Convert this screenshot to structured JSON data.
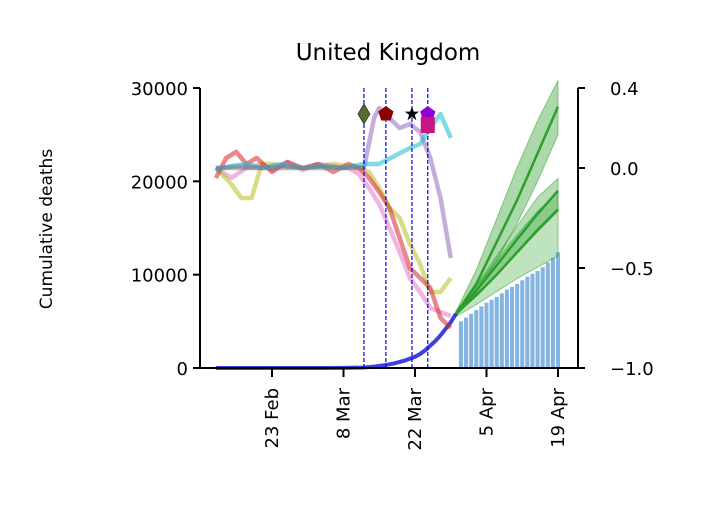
{
  "chart_data": {
    "type": "line",
    "title": "United Kingdom",
    "ylabel": "Cumulative deaths",
    "ylim": [
      0,
      30000
    ],
    "y_ticks": [
      0,
      10000,
      20000,
      30000
    ],
    "y2lim": [
      -1.0,
      0.4
    ],
    "y2_ticks": [
      "−1.0",
      "−0.5",
      "0.0",
      "0.4"
    ],
    "y2_tick_values": [
      -1.0,
      -0.5,
      0.0,
      0.4
    ],
    "x_ticks": [
      {
        "label": "23 Feb",
        "day": 0
      },
      {
        "label": "8 Mar",
        "day": 14
      },
      {
        "label": "22 Mar",
        "day": 28
      },
      {
        "label": "5 Apr",
        "day": 42
      },
      {
        "label": "19 Apr",
        "day": 56
      }
    ],
    "xlim_days": [
      -11,
      60
    ],
    "event_lines_days": [
      18,
      22.3,
      27.4,
      30.5
    ],
    "event_markers": [
      {
        "day": 18,
        "symbol": "diamond",
        "color": "#556b2f"
      },
      {
        "day": 22.3,
        "symbol": "pentagon",
        "color": "#8b0000"
      },
      {
        "day": 27.4,
        "symbol": "star",
        "color": "#000000"
      },
      {
        "day": 30.5,
        "symbol": "pentagon",
        "color": "#9400d3"
      },
      {
        "day": 30.5,
        "symbol": "square",
        "color": "#c71585"
      }
    ],
    "observed_deaths": {
      "color": "#1f1fd6",
      "days": [
        -11,
        0,
        10,
        14,
        18,
        20,
        22,
        24,
        26,
        28,
        29,
        30,
        31,
        32,
        33,
        34,
        35,
        36
      ],
      "values": [
        0,
        0,
        0,
        10,
        50,
        150,
        300,
        500,
        800,
        1200,
        1500,
        1900,
        2400,
        2900,
        3500,
        4200,
        4900,
        5800
      ]
    },
    "deaths_bars": {
      "color": "#5b9bd5",
      "days": [
        37,
        38,
        39,
        40,
        41,
        42,
        43,
        44,
        45,
        46,
        47,
        48,
        49,
        50,
        51,
        52,
        53,
        54,
        55,
        56
      ],
      "values": [
        5000,
        5400,
        5800,
        6200,
        6600,
        7000,
        7300,
        7600,
        8000,
        8400,
        8700,
        9000,
        9400,
        9800,
        10100,
        10400,
        10800,
        11300,
        11800,
        12400
      ]
    },
    "projections": [
      {
        "color": "#2ca02c",
        "opacity": 0.4,
        "days": [
          36,
          40,
          44,
          48,
          52,
          56
        ],
        "median": [
          5800,
          9000,
          13500,
          18000,
          23000,
          28000
        ],
        "low": [
          5600,
          8000,
          11500,
          15500,
          20000,
          25000
        ],
        "high": [
          6000,
          10500,
          16000,
          21500,
          26500,
          30800
        ]
      },
      {
        "color": "#2ca02c",
        "opacity": 0.35,
        "days": [
          36,
          40,
          44,
          48,
          52,
          56
        ],
        "median": [
          5800,
          8300,
          11000,
          13800,
          16500,
          19000
        ],
        "low": [
          5600,
          7800,
          10000,
          12300,
          14600,
          16800
        ],
        "high": [
          6000,
          8800,
          12000,
          15200,
          18300,
          20300
        ]
      },
      {
        "color": "#2ca02c",
        "opacity": 0.3,
        "days": [
          36,
          40,
          44,
          48,
          52,
          56
        ],
        "median": [
          5800,
          7800,
          10000,
          12400,
          14800,
          17000
        ],
        "low": [
          5500,
          6800,
          8200,
          9600,
          10800,
          12000
        ],
        "high": [
          6100,
          8700,
          11500,
          14300,
          16800,
          18800
        ]
      }
    ],
    "mobility_series": [
      {
        "color": "#e377c2",
        "days": [
          -11,
          -8,
          -5,
          -2,
          0,
          3,
          6,
          9,
          12,
          15,
          17,
          19,
          21,
          23,
          25,
          27,
          29,
          31,
          33,
          35
        ],
        "values": [
          0.0,
          -0.05,
          0.0,
          0.02,
          -0.01,
          0.03,
          -0.01,
          0.02,
          0.01,
          0.0,
          -0.03,
          -0.1,
          -0.18,
          -0.3,
          -0.42,
          -0.55,
          -0.62,
          -0.7,
          -0.72,
          -0.74
        ]
      },
      {
        "color": "#bcbd22",
        "days": [
          -11,
          -8,
          -6,
          -4,
          -2,
          0,
          3,
          6,
          9,
          12,
          15,
          17,
          19,
          21,
          23,
          25,
          27,
          29,
          31,
          33,
          35
        ],
        "values": [
          0.0,
          -0.08,
          -0.15,
          -0.15,
          0.02,
          0.02,
          0.01,
          0.0,
          0.01,
          0.02,
          0.01,
          0.0,
          -0.02,
          -0.1,
          -0.2,
          -0.25,
          -0.38,
          -0.48,
          -0.62,
          -0.62,
          -0.55
        ]
      },
      {
        "color": "#d62728",
        "days": [
          -11,
          -9,
          -7,
          -5,
          -3,
          0,
          3,
          6,
          9,
          12,
          15,
          17,
          19,
          21,
          23,
          25,
          27,
          29,
          31,
          33,
          35
        ],
        "values": [
          -0.05,
          0.05,
          0.08,
          0.02,
          0.05,
          -0.02,
          0.03,
          0.0,
          0.02,
          -0.02,
          0.02,
          0.0,
          -0.05,
          -0.12,
          -0.2,
          -0.35,
          -0.5,
          -0.55,
          -0.6,
          -0.75,
          -0.8
        ]
      },
      {
        "color": "#9467bd",
        "days": [
          -11,
          -6,
          -2,
          2,
          6,
          10,
          14,
          16,
          18,
          20,
          21,
          23,
          25,
          27,
          29,
          31,
          33,
          35
        ],
        "values": [
          0.0,
          0.01,
          0.0,
          0.01,
          0.0,
          0.01,
          0.0,
          0.01,
          0.0,
          0.25,
          0.3,
          0.25,
          0.2,
          0.22,
          0.18,
          0.05,
          -0.15,
          -0.45
        ]
      },
      {
        "color": "#17becf",
        "days": [
          -11,
          -8,
          -5,
          -2,
          2,
          6,
          10,
          14,
          18,
          21,
          24,
          27,
          29,
          31,
          33,
          35
        ],
        "values": [
          -0.01,
          0.01,
          0.02,
          0.0,
          0.02,
          0.0,
          0.01,
          0.0,
          0.02,
          0.02,
          0.06,
          0.1,
          0.12,
          0.2,
          0.27,
          0.15
        ]
      },
      {
        "color": "#7f7f7f",
        "days": [
          -11,
          0,
          10,
          18
        ],
        "values": [
          0.0,
          0.0,
          0.0,
          0.0
        ]
      }
    ]
  }
}
